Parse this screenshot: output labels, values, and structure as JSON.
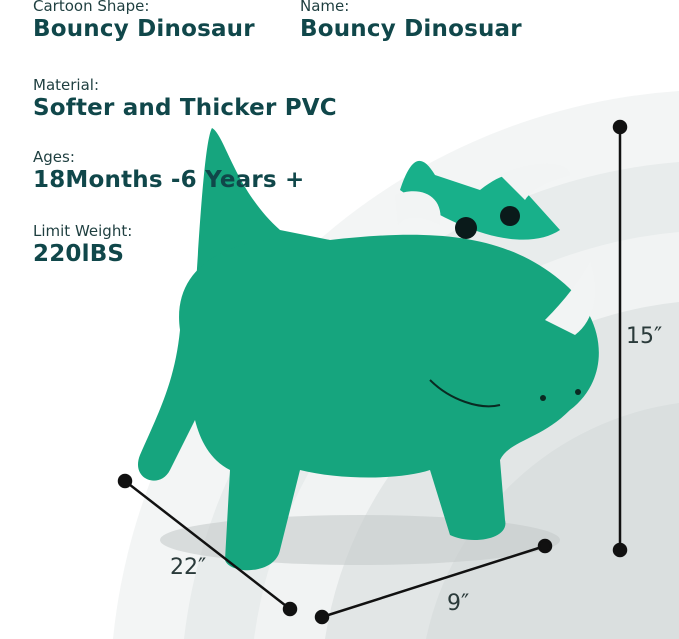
{
  "specs": {
    "cartoon_shape": {
      "label": "Cartoon Shape:",
      "value": "Bouncy Dinosaur"
    },
    "name": {
      "label": "Name:",
      "value": "Bouncy Dinosuar"
    },
    "material": {
      "label": "Material:",
      "value": "Softer and Thicker PVC"
    },
    "ages": {
      "label": "Ages:",
      "value": "18Months -6 Years +"
    },
    "limit_weight": {
      "label": "Limit Weight:",
      "value": "220lBS"
    }
  },
  "dimensions": {
    "height": "15″",
    "length": "22″",
    "width": "9″"
  },
  "colors": {
    "text": "#10474a",
    "dino": "#16a57e",
    "horns": "#f2f4f4",
    "arcs": "#e9eded"
  }
}
